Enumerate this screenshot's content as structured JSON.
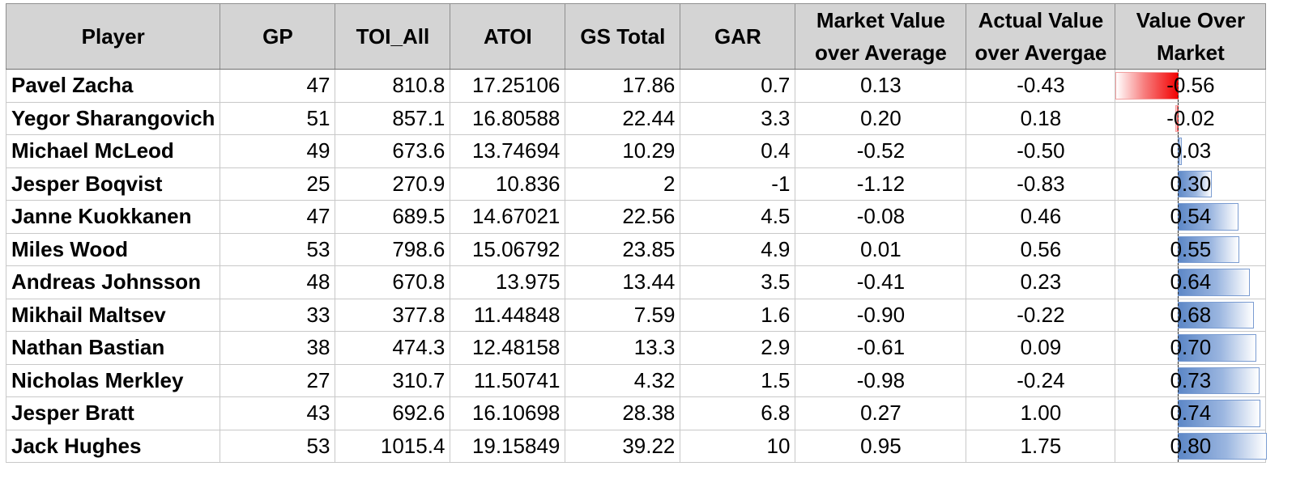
{
  "headers": {
    "player": "Player",
    "gp": "GP",
    "toi_all": "TOI_All",
    "atoi": "ATOI",
    "gs_total": "GS Total",
    "gar": "GAR",
    "market_line1": "Market Value",
    "market_line2": "over Average",
    "actual_line1": "Actual Value",
    "actual_line2": "over Avergae",
    "vom_line1": "Value Over",
    "vom_line2": "Market"
  },
  "rows": [
    {
      "player": "Pavel Zacha",
      "gp": "47",
      "toi_all": "810.8",
      "atoi": "17.25106",
      "gs_total": "17.86",
      "gar": "0.7",
      "market": "0.13",
      "actual": "-0.43",
      "vom": "-0.56"
    },
    {
      "player": "Yegor Sharangovich",
      "gp": "51",
      "toi_all": "857.1",
      "atoi": "16.80588",
      "gs_total": "22.44",
      "gar": "3.3",
      "market": "0.20",
      "actual": "0.18",
      "vom": "-0.02"
    },
    {
      "player": "Michael McLeod",
      "gp": "49",
      "toi_all": "673.6",
      "atoi": "13.74694",
      "gs_total": "10.29",
      "gar": "0.4",
      "market": "-0.52",
      "actual": "-0.50",
      "vom": "0.03"
    },
    {
      "player": "Jesper Boqvist",
      "gp": "25",
      "toi_all": "270.9",
      "atoi": "10.836",
      "gs_total": "2",
      "gar": "-1",
      "market": "-1.12",
      "actual": "-0.83",
      "vom": "0.30"
    },
    {
      "player": "Janne Kuokkanen",
      "gp": "47",
      "toi_all": "689.5",
      "atoi": "14.67021",
      "gs_total": "22.56",
      "gar": "4.5",
      "market": "-0.08",
      "actual": "0.46",
      "vom": "0.54"
    },
    {
      "player": "Miles Wood",
      "gp": "53",
      "toi_all": "798.6",
      "atoi": "15.06792",
      "gs_total": "23.85",
      "gar": "4.9",
      "market": "0.01",
      "actual": "0.56",
      "vom": "0.55"
    },
    {
      "player": "Andreas Johnsson",
      "gp": "48",
      "toi_all": "670.8",
      "atoi": "13.975",
      "gs_total": "13.44",
      "gar": "3.5",
      "market": "-0.41",
      "actual": "0.23",
      "vom": "0.64"
    },
    {
      "player": "Mikhail Maltsev",
      "gp": "33",
      "toi_all": "377.8",
      "atoi": "11.44848",
      "gs_total": "7.59",
      "gar": "1.6",
      "market": "-0.90",
      "actual": "-0.22",
      "vom": "0.68"
    },
    {
      "player": "Nathan Bastian",
      "gp": "38",
      "toi_all": "474.3",
      "atoi": "12.48158",
      "gs_total": "13.3",
      "gar": "2.9",
      "market": "-0.61",
      "actual": "0.09",
      "vom": "0.70"
    },
    {
      "player": "Nicholas Merkley",
      "gp": "27",
      "toi_all": "310.7",
      "atoi": "11.50741",
      "gs_total": "4.32",
      "gar": "1.5",
      "market": "-0.98",
      "actual": "-0.24",
      "vom": "0.73"
    },
    {
      "player": "Jesper Bratt",
      "gp": "43",
      "toi_all": "692.6",
      "atoi": "16.10698",
      "gs_total": "28.38",
      "gar": "6.8",
      "market": "0.27",
      "actual": "1.00",
      "vom": "0.74"
    },
    {
      "player": "Jack Hughes",
      "gp": "53",
      "toi_all": "1015.4",
      "atoi": "19.15849",
      "gs_total": "39.22",
      "gar": "10",
      "market": "0.95",
      "actual": "1.75",
      "vom": "0.80"
    }
  ],
  "data_bar_colors": {
    "positive": "#5b86c6",
    "negative": "#f20000"
  }
}
